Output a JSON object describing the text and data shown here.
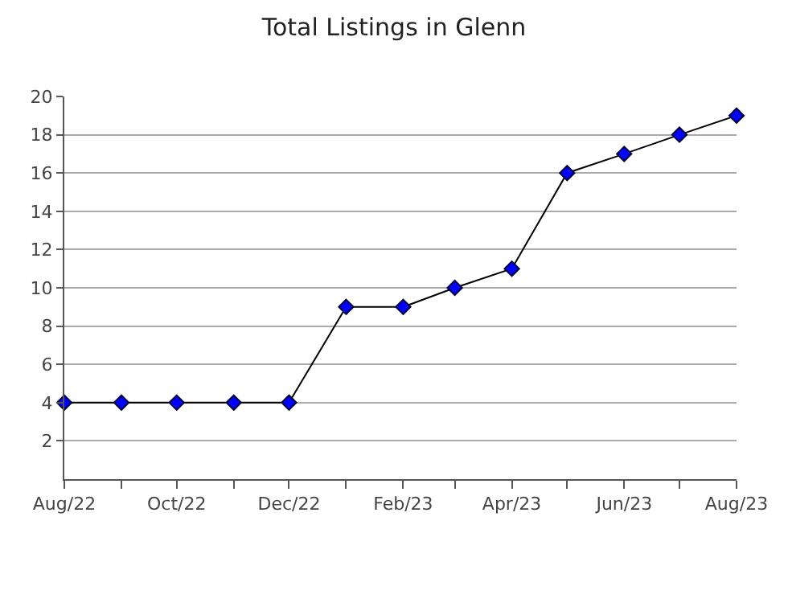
{
  "chart_data": {
    "type": "line",
    "title": "Total Listings in Glenn",
    "x": [
      "2022-08",
      "2022-09",
      "2022-10",
      "2022-11",
      "2022-12",
      "2023-01",
      "2023-02",
      "2023-03",
      "2023-04",
      "2023-05",
      "2023-06",
      "2023-07",
      "2023-08"
    ],
    "series": [
      {
        "color": "#0000ff",
        "values": [
          4,
          4,
          4,
          4,
          4,
          9,
          9,
          10,
          11,
          16,
          17,
          18,
          19
        ]
      }
    ],
    "xlim": [
      "2022-08",
      "2023-08"
    ],
    "xticks": [
      {
        "value": "2022-08",
        "label": "Aug/22"
      },
      {
        "value": "2022-09",
        "label": null
      },
      {
        "value": "2022-10",
        "label": "Oct/22"
      },
      {
        "value": "2022-11",
        "label": null
      },
      {
        "value": "2022-12",
        "label": "Dec/22"
      },
      {
        "value": "2023-01",
        "label": null
      },
      {
        "value": "2023-02",
        "label": "Feb/23"
      },
      {
        "value": "2023-03",
        "label": null
      },
      {
        "value": "2023-04",
        "label": "Apr/23"
      },
      {
        "value": "2023-05",
        "label": null
      },
      {
        "value": "2023-06",
        "label": "Jun/23"
      },
      {
        "value": "2023-07",
        "label": null
      },
      {
        "value": "2023-08",
        "label": "Aug/23"
      }
    ],
    "ylim": [
      0,
      20
    ],
    "yticks": [
      2,
      4,
      6,
      8,
      10,
      12,
      14,
      16,
      18,
      20
    ],
    "grid": "y",
    "marker": "diamond",
    "line_style": "solid"
  }
}
